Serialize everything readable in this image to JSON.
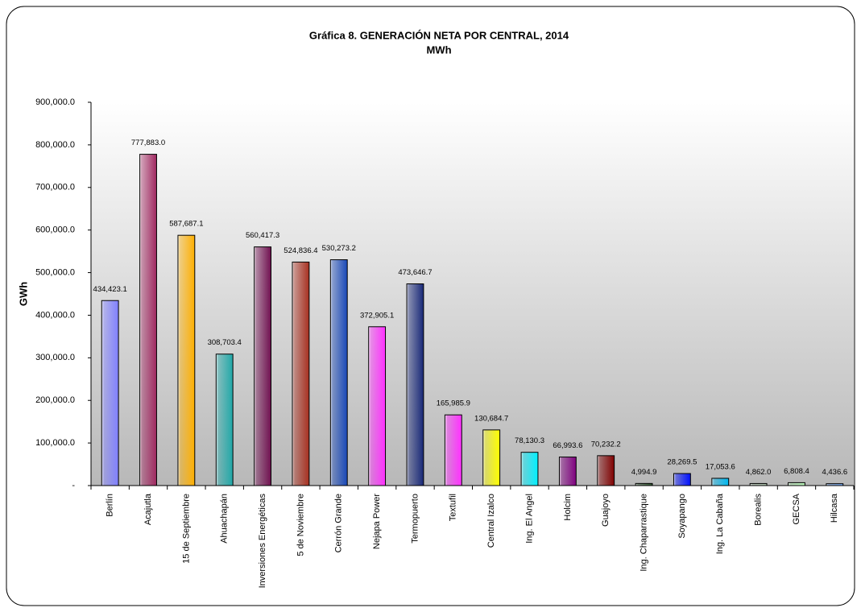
{
  "chart_data": {
    "type": "bar",
    "title": "Gráfica 8. GENERACIÓN NETA POR CENTRAL, 2014",
    "subtitle": "MWh",
    "y_label": "GWh",
    "categories": [
      "Berlín",
      "Acajutla",
      "15 de Septiembre",
      "Ahuachapán",
      "Inversiones Energéticas",
      "5 de Noviembre",
      "Cerrón Grande",
      "Nejapa Power",
      "Termopuerto",
      "Textufil",
      "Central Izalco",
      "Ing. El Angel",
      "Holcim",
      "Guajoyo",
      "Ing. Chaparrastique",
      "Soyapango",
      "Ing. La Cabaña",
      "Borealis",
      "GECSA",
      "Hilcasa"
    ],
    "values": [
      434423.1,
      777883.0,
      587687.1,
      308703.4,
      560417.3,
      524836.4,
      530273.2,
      372905.1,
      473646.7,
      165985.9,
      130684.7,
      78130.3,
      66993.6,
      70232.2,
      4994.9,
      28269.5,
      17053.6,
      4862.0,
      6808.4,
      4436.6
    ],
    "value_labels": [
      "434,423.1",
      "777,883.0",
      "587,687.1",
      "308,703.4",
      "560,417.3",
      "524,836.4",
      "530,273.2",
      "372,905.1",
      "473,646.7",
      "165,985.9",
      "130,684.7",
      "78,130.3",
      "66,993.6",
      "70,232.2",
      "4,994.9",
      "28,269.5",
      "17,053.6",
      "4,862.0",
      "6,808.4",
      "4,436.6"
    ],
    "colors": [
      "#8080ff",
      "#a02860",
      "#ffb000",
      "#20a8a8",
      "#701050",
      "#a83020",
      "#1848b8",
      "#ff30ff",
      "#182878",
      "#ff30ff",
      "#ffff00",
      "#00f0ff",
      "#800080",
      "#800000",
      "#305830",
      "#0010ff",
      "#00b8f0",
      "#a8c0a8",
      "#b8f8b8",
      "#78b0ff"
    ],
    "ylim": [
      0,
      900000
    ],
    "yticks": [
      {
        "value": 0,
        "label": "-"
      },
      {
        "value": 100000,
        "label": "100,000.0"
      },
      {
        "value": 200000,
        "label": "200,000.0"
      },
      {
        "value": 300000,
        "label": "300,000.0"
      },
      {
        "value": 400000,
        "label": "400,000.0"
      },
      {
        "value": 500000,
        "label": "500,000.0"
      },
      {
        "value": 600000,
        "label": "600,000.0"
      },
      {
        "value": 700000,
        "label": "700,000.0"
      },
      {
        "value": 800000,
        "label": "800,000.0"
      },
      {
        "value": 900000,
        "label": "900,000.0"
      }
    ],
    "grid": false
  }
}
